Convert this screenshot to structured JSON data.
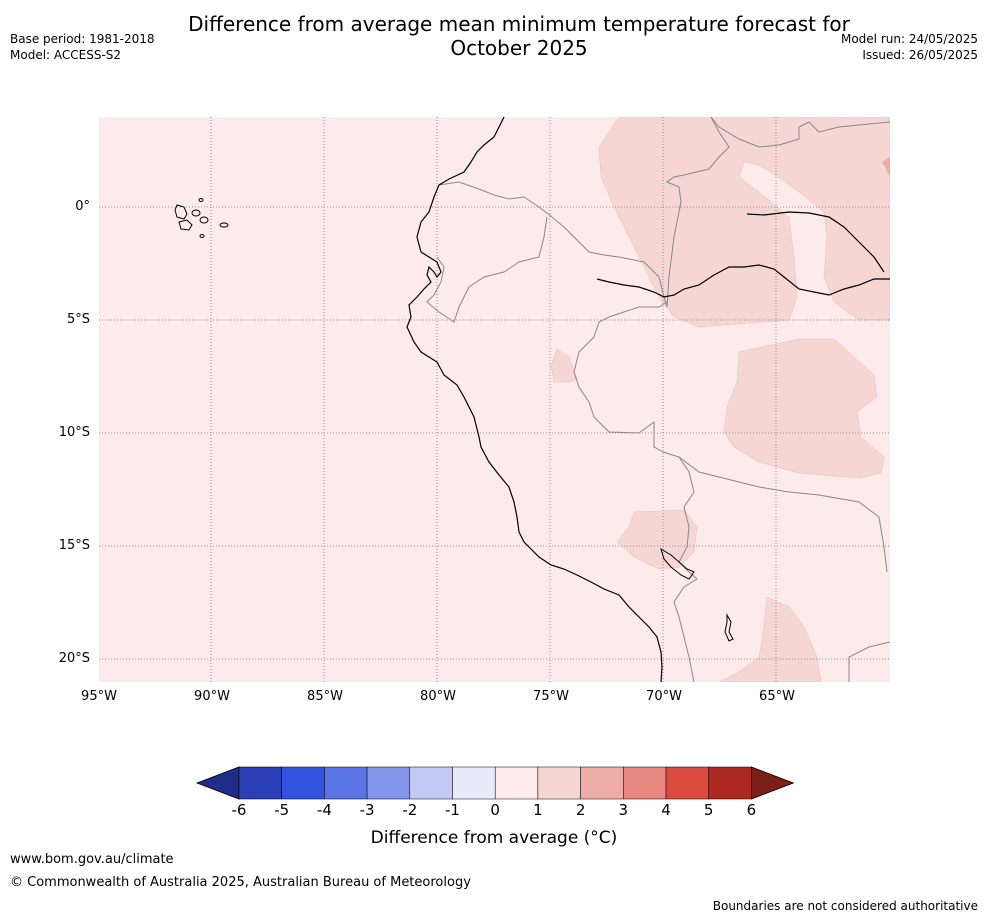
{
  "title_line1": "Difference from average mean minimum temperature forecast for",
  "title_line2": "October 2025",
  "base_period": "Base period: 1981-2018",
  "model": "Model: ACCESS-S2",
  "model_run": "Model run: 24/05/2025",
  "issued": "Issued: 26/05/2025",
  "lat_labels": [
    "0°",
    "5°S",
    "10°S",
    "15°S",
    "20°S"
  ],
  "lon_labels": [
    "95°W",
    "90°W",
    "85°W",
    "80°W",
    "75°W",
    "70°W",
    "65°W"
  ],
  "colorbar": {
    "ticks": [
      "-6",
      "-5",
      "-4",
      "-3",
      "-2",
      "-1",
      "0",
      "1",
      "2",
      "3",
      "4",
      "5",
      "6"
    ],
    "colors": [
      "#1f2d8a",
      "#2a3fb5",
      "#3452e0",
      "#5b74e6",
      "#8496ea",
      "#c1c9f4",
      "#e8ebfb",
      "#fcebea",
      "#f6d6d3",
      "#eeaca7",
      "#e88780",
      "#da4a40",
      "#ad2a22",
      "#7a1e18"
    ],
    "label": "Difference from average (°C)"
  },
  "map_colors": {
    "base": "#fcebea",
    "warm": "#f6d6d3",
    "warmer": "#eeaca7"
  },
  "footer": {
    "url": "www.bom.gov.au/climate",
    "copyright": "© Commonwealth of Australia 2025, Australian Bureau of Meteorology",
    "disclaimer": "Boundaries are not considered authoritative"
  }
}
